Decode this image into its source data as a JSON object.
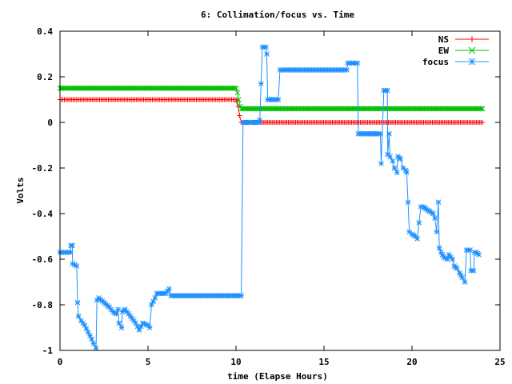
{
  "chart_data": {
    "type": "line",
    "title": "6: Collimation/focus vs. Time",
    "xlabel": "time (Elapse Hours)",
    "ylabel": "Volts",
    "xlim": [
      0,
      25
    ],
    "ylim": [
      -1,
      0.4
    ],
    "xticks": [
      "0",
      "5",
      "10",
      "15",
      "20",
      "25"
    ],
    "yticks": [
      "-1",
      "-0.8",
      "-0.6",
      "-0.4",
      "-0.2",
      "0",
      "0.2",
      "0.4"
    ],
    "grid": false,
    "legend_position": "top-right",
    "series": [
      {
        "name": "NS",
        "color": "#ff0000",
        "marker": "plus",
        "points": [
          [
            0,
            0.1
          ],
          [
            10.0,
            0.1
          ],
          [
            10.05,
            0.09
          ],
          [
            10.12,
            0.07
          ],
          [
            10.2,
            0.03
          ],
          [
            10.3,
            0.0
          ],
          [
            24.0,
            0.0
          ]
        ]
      },
      {
        "name": "EW",
        "color": "#00c000",
        "marker": "cross",
        "points": [
          [
            0,
            0.15
          ],
          [
            10.0,
            0.15
          ],
          [
            10.08,
            0.13
          ],
          [
            10.15,
            0.1
          ],
          [
            10.25,
            0.07
          ],
          [
            10.3,
            0.06
          ],
          [
            24.0,
            0.06
          ]
        ]
      },
      {
        "name": "focus",
        "color": "#1e90ff",
        "marker": "star",
        "points": [
          [
            0,
            -0.57
          ],
          [
            0.6,
            -0.57
          ],
          [
            0.62,
            -0.54
          ],
          [
            0.7,
            -0.54
          ],
          [
            0.72,
            -0.62
          ],
          [
            0.95,
            -0.63
          ],
          [
            1.0,
            -0.79
          ],
          [
            1.05,
            -0.85
          ],
          [
            1.2,
            -0.87
          ],
          [
            1.4,
            -0.89
          ],
          [
            1.6,
            -0.92
          ],
          [
            1.8,
            -0.95
          ],
          [
            1.9,
            -0.97
          ],
          [
            2.05,
            -0.99
          ],
          [
            2.1,
            -0.78
          ],
          [
            2.2,
            -0.77
          ],
          [
            2.5,
            -0.79
          ],
          [
            2.8,
            -0.81
          ],
          [
            3.0,
            -0.83
          ],
          [
            3.2,
            -0.84
          ],
          [
            3.3,
            -0.82
          ],
          [
            3.35,
            -0.88
          ],
          [
            3.5,
            -0.9
          ],
          [
            3.55,
            -0.83
          ],
          [
            3.7,
            -0.82
          ],
          [
            4.0,
            -0.85
          ],
          [
            4.3,
            -0.88
          ],
          [
            4.5,
            -0.91
          ],
          [
            4.7,
            -0.88
          ],
          [
            5.0,
            -0.89
          ],
          [
            5.1,
            -0.9
          ],
          [
            5.2,
            -0.8
          ],
          [
            5.4,
            -0.77
          ],
          [
            5.5,
            -0.75
          ],
          [
            5.7,
            -0.75
          ],
          [
            6.0,
            -0.75
          ],
          [
            6.2,
            -0.73
          ],
          [
            6.3,
            -0.76
          ],
          [
            10.3,
            -0.76
          ],
          [
            10.4,
            0.0
          ],
          [
            11.3,
            0.0
          ],
          [
            11.35,
            0.01
          ],
          [
            11.5,
            0.33
          ],
          [
            11.7,
            0.33
          ],
          [
            11.75,
            0.3
          ],
          [
            11.8,
            0.1
          ],
          [
            12.4,
            0.1
          ],
          [
            12.5,
            0.23
          ],
          [
            16.0,
            0.23
          ],
          [
            16.3,
            0.23
          ],
          [
            16.35,
            0.26
          ],
          [
            16.9,
            0.26
          ],
          [
            16.95,
            -0.05
          ],
          [
            18.2,
            -0.05
          ],
          [
            18.25,
            -0.18
          ],
          [
            18.4,
            0.14
          ],
          [
            18.6,
            0.14
          ],
          [
            18.62,
            -0.14
          ],
          [
            18.7,
            -0.05
          ],
          [
            18.75,
            -0.15
          ],
          [
            18.9,
            -0.17
          ],
          [
            19.0,
            -0.2
          ],
          [
            19.15,
            -0.22
          ],
          [
            19.2,
            -0.15
          ],
          [
            19.35,
            -0.16
          ],
          [
            19.5,
            -0.2
          ],
          [
            19.65,
            -0.21
          ],
          [
            19.7,
            -0.22
          ],
          [
            19.85,
            -0.48
          ],
          [
            20.0,
            -0.49
          ],
          [
            20.2,
            -0.5
          ],
          [
            20.3,
            -0.51
          ],
          [
            20.5,
            -0.37
          ],
          [
            20.65,
            -0.37
          ],
          [
            20.8,
            -0.38
          ],
          [
            21.0,
            -0.39
          ],
          [
            21.2,
            -0.4
          ],
          [
            21.3,
            -0.42
          ],
          [
            21.4,
            -0.48
          ],
          [
            21.5,
            -0.35
          ],
          [
            21.55,
            -0.55
          ],
          [
            21.65,
            -0.57
          ],
          [
            21.8,
            -0.59
          ],
          [
            22.0,
            -0.6
          ],
          [
            22.1,
            -0.58
          ],
          [
            22.3,
            -0.6
          ],
          [
            22.4,
            -0.63
          ],
          [
            22.55,
            -0.64
          ],
          [
            22.7,
            -0.66
          ],
          [
            22.85,
            -0.68
          ],
          [
            23.0,
            -0.7
          ],
          [
            23.1,
            -0.56
          ],
          [
            23.3,
            -0.56
          ],
          [
            23.35,
            -0.65
          ],
          [
            23.5,
            -0.65
          ],
          [
            23.55,
            -0.57
          ],
          [
            23.65,
            -0.57
          ],
          [
            23.8,
            -0.58
          ]
        ]
      }
    ]
  }
}
